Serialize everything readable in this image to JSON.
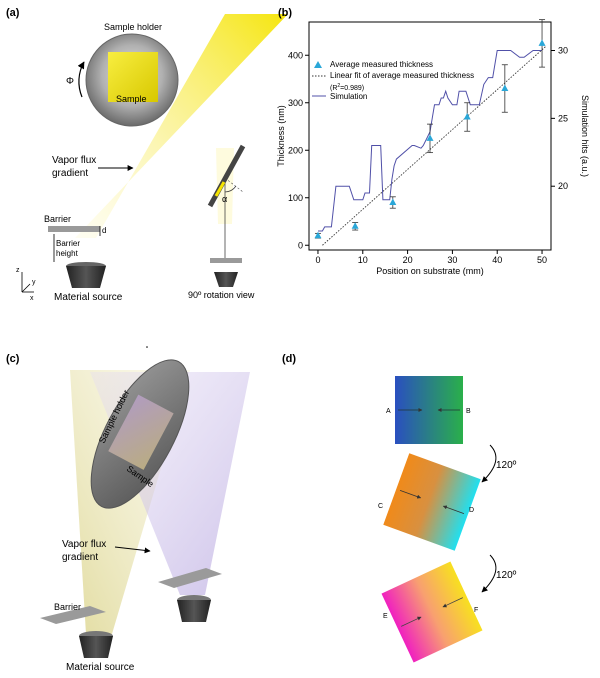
{
  "panel_a": {
    "label": "(a)",
    "sample_holder": "Sample holder",
    "sample": "Sample",
    "phi": "Φ",
    "vapor_flux_line1": "Vapor flux",
    "vapor_flux_line2": "gradient",
    "barrier": "Barrier",
    "barrier_height_line1": "Barrier",
    "barrier_height_line2": "height",
    "d": "d",
    "alpha": "α",
    "material_source": "Material source",
    "rotation_view": "90º rotation view",
    "axis_x": "x",
    "axis_y": "y",
    "axis_z": "z",
    "colors": {
      "flux": "#f5e400",
      "holder": "#8a8a8a",
      "source": "#3a3a3a",
      "barrier": "#9a9a9a"
    }
  },
  "panel_b": {
    "label": "(b)",
    "legend": {
      "measured": "Average measured thickness",
      "fit": "Linear fit of average measured thickness",
      "r2_prefix": "(R",
      "r2_sup": "2",
      "r2_suffix": "=0.989)",
      "simulation": "Simulation"
    }
  },
  "panel_c": {
    "label": "(c)",
    "sample_holder": "Sample holder",
    "sample": "Sample",
    "vapor_flux_line1": "Vapor flux",
    "vapor_flux_line2": "gradient",
    "barrier": "Barrier",
    "material_source": "Material source",
    "colors": {
      "yellow_flux": "#e8e2a0",
      "purple_flux": "#c9b8e0"
    }
  },
  "panel_d": {
    "label": "(d)",
    "rotation_1": "120º",
    "rotation_2": "120º",
    "points_1": [
      "A",
      "B"
    ],
    "points_2": [
      "C",
      "D"
    ],
    "points_3": [
      "E",
      "F"
    ],
    "colors": {
      "blue": "#2a4fc0",
      "green": "#2ab04a",
      "orange": "#f08a1a",
      "cyan": "#20e0f0",
      "magenta": "#f020c0",
      "yellow": "#f8e020"
    }
  },
  "chart_data": {
    "type": "line",
    "title": "",
    "xlabel": "Position on substrate (mm)",
    "ylabel": "Thickness (nm)",
    "y2label": "Simulation hits (a.u.)",
    "xlim": [
      -2,
      52
    ],
    "ylim": [
      -10,
      470
    ],
    "y2lim": [
      15.3,
      32.1
    ],
    "xticks": [
      0,
      10,
      20,
      30,
      40,
      50
    ],
    "yticks": [
      0,
      100,
      200,
      300,
      400
    ],
    "y2ticks": [
      20,
      25,
      30
    ],
    "legend_position": "top-left",
    "grid": false,
    "series": [
      {
        "name": "Average measured thickness",
        "style": "triangle-markers-with-errorbars",
        "color": "#2aa7d8",
        "x": [
          0,
          8.3,
          16.7,
          25,
          33.3,
          41.7,
          50
        ],
        "y": [
          20,
          40,
          90,
          225,
          270,
          330,
          425
        ],
        "err": [
          5,
          8,
          12,
          30,
          30,
          50,
          50
        ]
      },
      {
        "name": "Linear fit of average measured thickness",
        "style": "dotted-line",
        "color": "#333333",
        "x": [
          1,
          51
        ],
        "y": [
          0,
          420
        ]
      },
      {
        "name": "Simulation",
        "style": "step-line",
        "axis": "y2",
        "color": "#5050a8",
        "x": [
          0,
          1,
          1.5,
          3,
          4,
          7,
          8,
          10,
          10.5,
          11.5,
          12,
          14,
          14.5,
          16,
          16.5,
          17,
          17.5,
          21,
          21.5,
          23,
          23.5,
          25,
          25.5,
          26,
          27,
          27.5,
          28,
          28.5,
          29,
          30,
          31,
          31.5,
          33,
          34,
          36,
          37,
          38,
          39,
          40,
          43,
          45,
          46,
          48,
          50
        ],
        "y": [
          16.7,
          16.7,
          17.0,
          17.0,
          20.0,
          20.0,
          19.0,
          19.0,
          19.5,
          19.5,
          23.0,
          23.0,
          19.0,
          19.0,
          20.5,
          21.5,
          22.0,
          23.0,
          23.0,
          22.8,
          23.0,
          24.0,
          25.0,
          26.0,
          26.0,
          26.5,
          26.5,
          27.0,
          26.5,
          26.0,
          26.0,
          27.0,
          27.0,
          26.0,
          26.0,
          27.5,
          28.0,
          28.0,
          30.0,
          30.0,
          29.5,
          29.5,
          30.0,
          30.0
        ]
      }
    ]
  }
}
